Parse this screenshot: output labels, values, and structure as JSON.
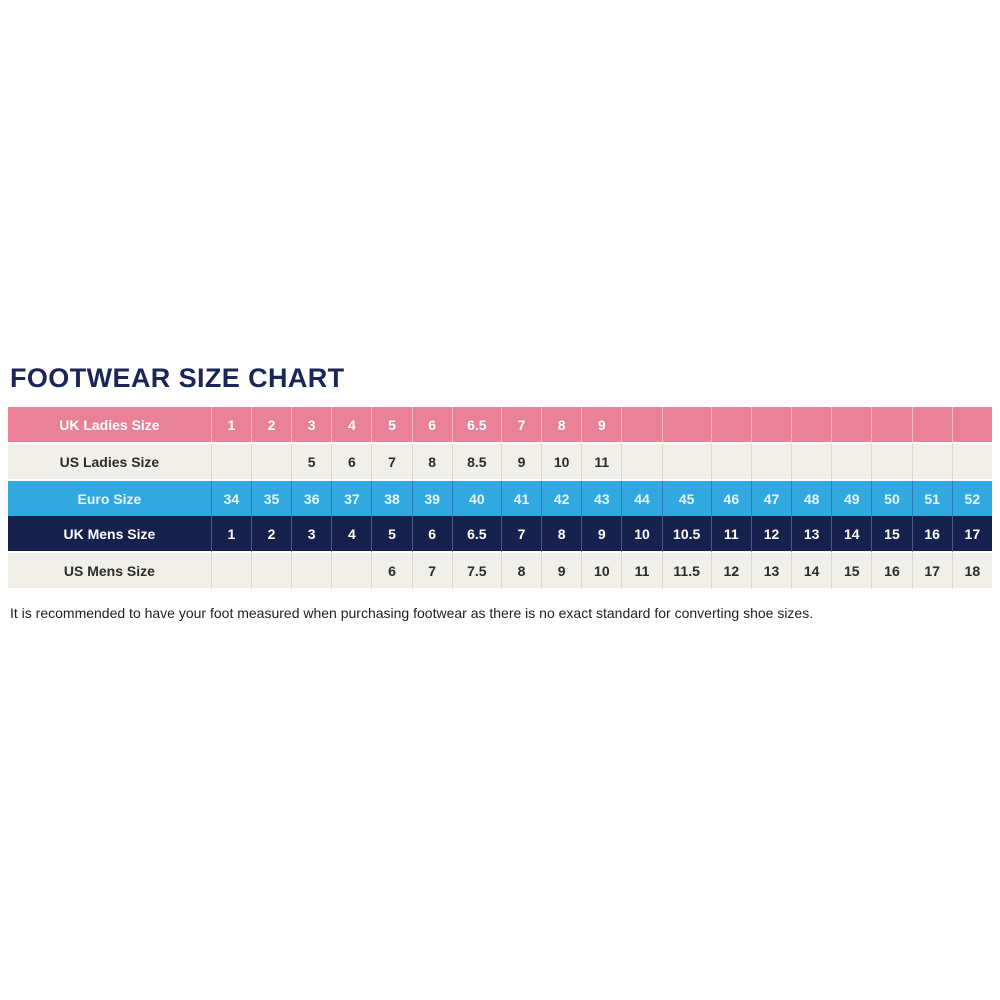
{
  "page": {
    "title": "FOOTWEAR SIZE CHART",
    "footnote": "It is recommended to have your foot measured when purchasing footwear as there is no exact standard for converting shoe sizes."
  },
  "colors": {
    "title_navy": "#1b2656",
    "pink": "#e98298",
    "blue": "#31a8e0",
    "navy": "#16224d",
    "row_light": "#f0efe9",
    "cell_border_light": "#d8d7d0",
    "text_dark": "#2b2b2b",
    "euro_text": "#e8f4fb",
    "footnote_text": "#1f1f1f"
  },
  "chart_data": {
    "type": "table",
    "title": "FOOTWEAR SIZE CHART",
    "footnote": "It is recommended to have your foot measured when purchasing footwear as there is no exact standard for converting shoe sizes.",
    "columns": 19,
    "rows": [
      {
        "label": "UK Ladies Size",
        "style": "pink",
        "values": [
          "1",
          "2",
          "3",
          "4",
          "5",
          "6",
          "6.5",
          "7",
          "8",
          "9",
          "",
          "",
          "",
          "",
          "",
          "",
          "",
          "",
          ""
        ]
      },
      {
        "label": "US Ladies Size",
        "style": "light",
        "values": [
          "",
          "",
          "5",
          "6",
          "7",
          "8",
          "8.5",
          "9",
          "10",
          "11",
          "",
          "",
          "",
          "",
          "",
          "",
          "",
          "",
          ""
        ]
      },
      {
        "label": "Euro Size",
        "style": "blue",
        "values": [
          "34",
          "35",
          "36",
          "37",
          "38",
          "39",
          "40",
          "41",
          "42",
          "43",
          "44",
          "45",
          "46",
          "47",
          "48",
          "49",
          "50",
          "51",
          "52"
        ]
      },
      {
        "label": "UK Mens Size",
        "style": "navy",
        "values": [
          "1",
          "2",
          "3",
          "4",
          "5",
          "6",
          "6.5",
          "7",
          "8",
          "9",
          "10",
          "10.5",
          "11",
          "12",
          "13",
          "14",
          "15",
          "16",
          "17"
        ]
      },
      {
        "label": "US Mens Size",
        "style": "light",
        "values": [
          "",
          "",
          "",
          "",
          "6",
          "7",
          "7.5",
          "8",
          "9",
          "10",
          "11",
          "11.5",
          "12",
          "13",
          "14",
          "15",
          "16",
          "17",
          "18"
        ]
      }
    ]
  }
}
